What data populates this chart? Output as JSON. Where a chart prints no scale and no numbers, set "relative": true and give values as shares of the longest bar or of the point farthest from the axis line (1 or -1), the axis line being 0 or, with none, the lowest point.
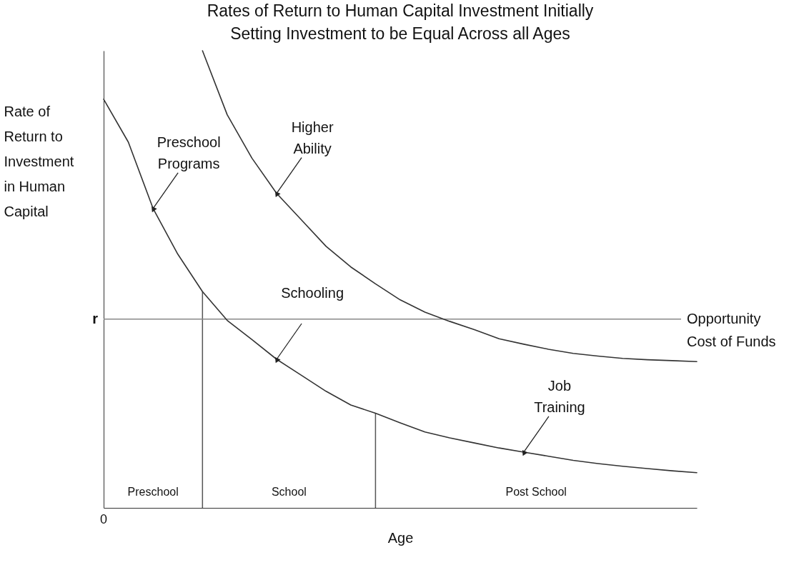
{
  "chart_data": {
    "type": "line",
    "title": "Rates of Return to Human Capital Investment Initially Setting Investment to be Equal Across all Ages",
    "xlabel": "Age",
    "ylabel": "Rate of Return to Investment in Human Capital",
    "relative": true,
    "categories": [
      null,
      null,
      null,
      null,
      null,
      null,
      null,
      null,
      null,
      null,
      null,
      null,
      null,
      null,
      null,
      null,
      null,
      null,
      null,
      null,
      null,
      null,
      null,
      null,
      null
    ],
    "series": [
      {
        "color": "#333333",
        "values": [
          0.894,
          0.8,
          0.655,
          0.555,
          0.473,
          0.41,
          0.368,
          0.325,
          0.29,
          0.255,
          0.225,
          0.207,
          0.186,
          0.166,
          0.153,
          0.142,
          0.131,
          0.122,
          0.113,
          0.104,
          0.097,
          0.091,
          0.086,
          0.081,
          0.077
        ]
      },
      {
        "color": "#333333",
        "values": [
          null,
          null,
          null,
          null,
          1.0,
          0.86,
          0.765,
          0.688,
          0.63,
          0.572,
          0.527,
          0.49,
          0.455,
          0.428,
          0.408,
          0.39,
          0.37,
          0.358,
          0.347,
          0.338,
          0.332,
          0.327,
          0.324,
          0.322,
          0.32
        ]
      }
    ],
    "ref_lines": [
      {
        "axis": "y",
        "value": 0.413,
        "label": "Opportunity Cost of Funds",
        "color": "#888888"
      }
    ],
    "annotations": [
      "0",
      "r",
      "Preschool",
      "School",
      "Post School",
      "Preschool Programs",
      "Higher Ability",
      "Schooling",
      "Job Training"
    ]
  }
}
